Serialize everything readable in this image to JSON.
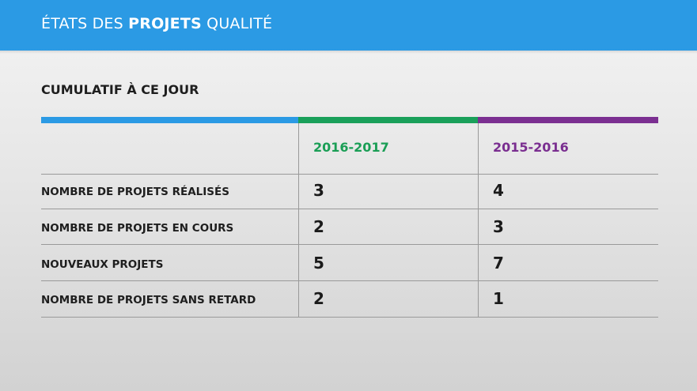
{
  "header": {
    "title_part1": "ÉTATS DES ",
    "title_bold": "PROJETS",
    "title_part2": " QUALITÉ"
  },
  "section_title": "CUMULATIF À CE JOUR",
  "colors": {
    "header_bg": "#2b9ae4",
    "bar_blue": "#2b9ae4",
    "bar_green": "#1aa05a",
    "bar_purple": "#7b2f91",
    "col_green_text": "#1a9e55",
    "col_purple_text": "#7a2e90"
  },
  "table": {
    "columns": [
      "2016-2017",
      "2015-2016"
    ],
    "rows": [
      {
        "label": "NOMBRE DE PROJETS RÉALISÉS",
        "values": [
          "3",
          "4"
        ]
      },
      {
        "label": "NOMBRE DE PROJETS EN COURS",
        "values": [
          "2",
          "3"
        ]
      },
      {
        "label": "NOUVEAUX PROJETS",
        "values": [
          "5",
          "7"
        ]
      },
      {
        "label": "NOMBRE DE PROJETS SANS RETARD",
        "values": [
          "2",
          "1"
        ]
      }
    ]
  }
}
